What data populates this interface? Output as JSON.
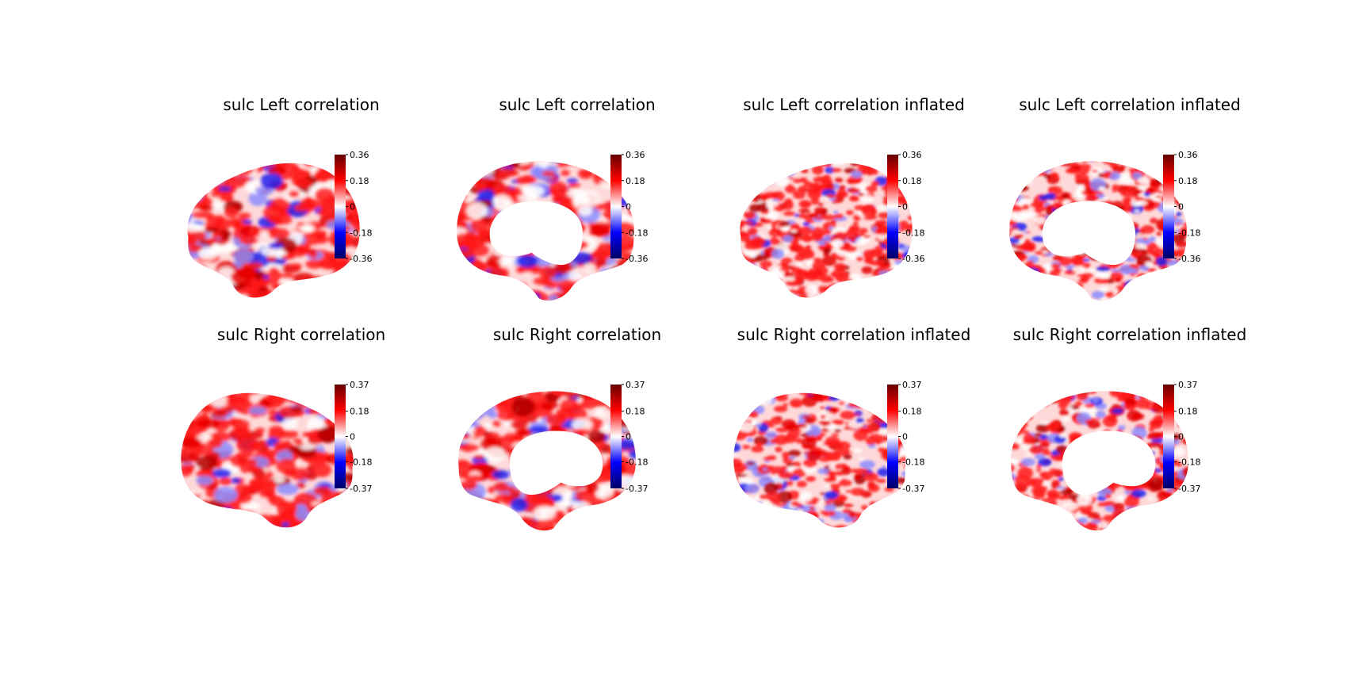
{
  "figure": {
    "colormap": [
      "#000066",
      "#0000ff",
      "#ffffff",
      "#ff0000",
      "#660000"
    ],
    "panels": [
      {
        "title": "sulc Left correlation",
        "hemisphere": "left",
        "view": "lateral",
        "surface": "pial",
        "vmin": -0.36,
        "vmax": 0.36,
        "ticks": [
          "0.36",
          "0.18",
          "0",
          "-0.18",
          "-0.36"
        ]
      },
      {
        "title": "sulc Left correlation",
        "hemisphere": "left",
        "view": "medial",
        "surface": "pial",
        "vmin": -0.36,
        "vmax": 0.36,
        "ticks": [
          "0.36",
          "0.18",
          "0",
          "-0.18",
          "-0.36"
        ]
      },
      {
        "title": "sulc Left correlation inflated",
        "hemisphere": "left",
        "view": "lateral",
        "surface": "inflated",
        "vmin": -0.36,
        "vmax": 0.36,
        "ticks": [
          "0.36",
          "0.18",
          "0",
          "-0.18",
          "-0.36"
        ]
      },
      {
        "title": "sulc Left correlation inflated",
        "hemisphere": "left",
        "view": "medial",
        "surface": "inflated",
        "vmin": -0.36,
        "vmax": 0.36,
        "ticks": [
          "0.36",
          "0.18",
          "0",
          "-0.18",
          "-0.36"
        ]
      },
      {
        "title": "sulc Right correlation",
        "hemisphere": "right",
        "view": "lateral",
        "surface": "pial",
        "vmin": -0.37,
        "vmax": 0.37,
        "ticks": [
          "0.37",
          "0.18",
          "0",
          "-0.18",
          "-0.37"
        ]
      },
      {
        "title": "sulc Right correlation",
        "hemisphere": "right",
        "view": "medial",
        "surface": "pial",
        "vmin": -0.37,
        "vmax": 0.37,
        "ticks": [
          "0.37",
          "0.18",
          "0",
          "-0.18",
          "-0.37"
        ]
      },
      {
        "title": "sulc Right correlation inflated",
        "hemisphere": "right",
        "view": "lateral",
        "surface": "inflated",
        "vmin": -0.37,
        "vmax": 0.37,
        "ticks": [
          "0.37",
          "0.18",
          "0",
          "-0.18",
          "-0.37"
        ]
      },
      {
        "title": "sulc Right correlation inflated",
        "hemisphere": "right",
        "view": "medial",
        "surface": "inflated",
        "vmin": -0.37,
        "vmax": 0.37,
        "ticks": [
          "0.37",
          "0.18",
          "0",
          "-0.18",
          "-0.37"
        ]
      }
    ]
  }
}
